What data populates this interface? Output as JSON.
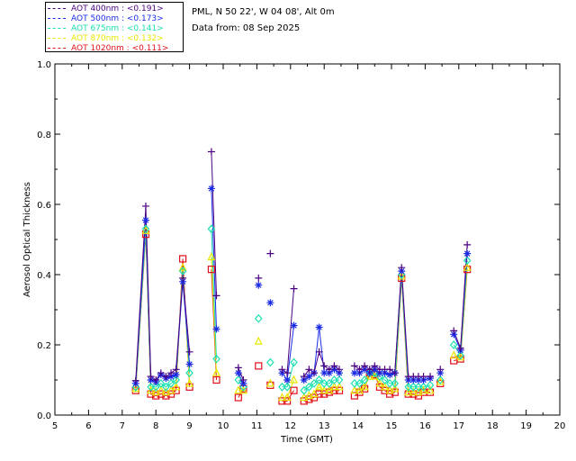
{
  "header": {
    "site_line": "PML, N 50 22', W 04 08', Alt 0m",
    "date_line": "Data from: 08 Sep 2025"
  },
  "colors": {
    "aot400": "#4b0082",
    "aot500": "#1a2be6",
    "aot675": "#19e0b0",
    "aot870": "#e8e800",
    "aot1020": "#e0101a"
  },
  "chart_data": {
    "type": "scatter",
    "xlabel": "Time (GMT)",
    "ylabel": "Aerosol Optical Thickness",
    "xlim": [
      5,
      20
    ],
    "ylim": [
      0,
      1.0
    ],
    "xticks": [
      "5",
      "6",
      "7",
      "8",
      "9",
      "10",
      "11",
      "12",
      "13",
      "14",
      "15",
      "16",
      "17",
      "18",
      "19",
      "20"
    ],
    "yticks": [
      "0.0",
      "0.2",
      "0.4",
      "0.6",
      "0.8",
      "1.0"
    ],
    "grid": false,
    "legend_position": "top-left outside",
    "series": [
      {
        "name": "AOT  400nm : <0.191>",
        "color_key": "aot400",
        "marker": "plus",
        "points": [
          [
            7.4,
            0.098
          ],
          [
            7.7,
            0.595
          ],
          [
            7.85,
            0.11
          ],
          [
            8.0,
            0.1
          ],
          [
            8.15,
            0.12
          ],
          [
            8.3,
            0.11
          ],
          [
            8.45,
            0.12
          ],
          [
            8.6,
            0.13
          ],
          [
            8.8,
            0.39
          ],
          [
            9.0,
            0.18
          ],
          [
            9.65,
            0.75
          ],
          [
            9.8,
            0.34
          ],
          [
            10.45,
            0.135
          ],
          [
            10.6,
            0.1
          ],
          [
            11.05,
            0.39
          ],
          [
            11.4,
            0.46
          ],
          [
            11.75,
            0.13
          ],
          [
            11.9,
            0.12
          ],
          [
            12.1,
            0.36
          ],
          [
            12.4,
            0.11
          ],
          [
            12.55,
            0.13
          ],
          [
            12.7,
            0.12
          ],
          [
            12.85,
            0.18
          ],
          [
            13.0,
            0.14
          ],
          [
            13.15,
            0.13
          ],
          [
            13.3,
            0.14
          ],
          [
            13.45,
            0.13
          ],
          [
            13.9,
            0.14
          ],
          [
            14.05,
            0.13
          ],
          [
            14.2,
            0.14
          ],
          [
            14.35,
            0.13
          ],
          [
            14.5,
            0.14
          ],
          [
            14.65,
            0.13
          ],
          [
            14.8,
            0.13
          ],
          [
            14.95,
            0.13
          ],
          [
            15.1,
            0.12
          ],
          [
            15.3,
            0.42
          ],
          [
            15.5,
            0.11
          ],
          [
            15.65,
            0.11
          ],
          [
            15.8,
            0.11
          ],
          [
            15.95,
            0.11
          ],
          [
            16.15,
            0.11
          ],
          [
            16.45,
            0.13
          ],
          [
            16.85,
            0.24
          ],
          [
            17.05,
            0.19
          ],
          [
            17.25,
            0.485
          ]
        ]
      },
      {
        "name": "AOT  500nm : <0.173>",
        "color_key": "aot500",
        "marker": "asterisk",
        "points": [
          [
            7.4,
            0.09
          ],
          [
            7.7,
            0.555
          ],
          [
            7.85,
            0.1
          ],
          [
            8.0,
            0.095
          ],
          [
            8.15,
            0.115
          ],
          [
            8.3,
            0.105
          ],
          [
            8.45,
            0.11
          ],
          [
            8.6,
            0.115
          ],
          [
            8.8,
            0.38
          ],
          [
            9.0,
            0.145
          ],
          [
            9.65,
            0.645
          ],
          [
            9.8,
            0.245
          ],
          [
            10.45,
            0.12
          ],
          [
            10.6,
            0.09
          ],
          [
            11.05,
            0.37
          ],
          [
            11.4,
            0.32
          ],
          [
            11.75,
            0.12
          ],
          [
            11.9,
            0.1
          ],
          [
            12.1,
            0.255
          ],
          [
            12.4,
            0.1
          ],
          [
            12.55,
            0.11
          ],
          [
            12.7,
            0.12
          ],
          [
            12.85,
            0.25
          ],
          [
            13.0,
            0.12
          ],
          [
            13.15,
            0.12
          ],
          [
            13.3,
            0.13
          ],
          [
            13.45,
            0.12
          ],
          [
            13.9,
            0.12
          ],
          [
            14.05,
            0.12
          ],
          [
            14.2,
            0.13
          ],
          [
            14.35,
            0.12
          ],
          [
            14.5,
            0.13
          ],
          [
            14.65,
            0.12
          ],
          [
            14.8,
            0.12
          ],
          [
            14.95,
            0.115
          ],
          [
            15.1,
            0.12
          ],
          [
            15.3,
            0.41
          ],
          [
            15.5,
            0.1
          ],
          [
            15.65,
            0.1
          ],
          [
            15.8,
            0.1
          ],
          [
            15.95,
            0.1
          ],
          [
            16.15,
            0.105
          ],
          [
            16.45,
            0.12
          ],
          [
            16.85,
            0.23
          ],
          [
            17.05,
            0.185
          ],
          [
            17.25,
            0.46
          ]
        ]
      },
      {
        "name": "AOT  675nm : <0.141>",
        "color_key": "aot675",
        "marker": "diamond",
        "points": [
          [
            7.4,
            0.08
          ],
          [
            7.7,
            0.53
          ],
          [
            7.85,
            0.08
          ],
          [
            8.0,
            0.08
          ],
          [
            8.15,
            0.09
          ],
          [
            8.3,
            0.08
          ],
          [
            8.45,
            0.09
          ],
          [
            8.6,
            0.1
          ],
          [
            8.8,
            0.41
          ],
          [
            9.0,
            0.12
          ],
          [
            9.65,
            0.53
          ],
          [
            9.8,
            0.16
          ],
          [
            10.45,
            0.1
          ],
          [
            10.6,
            0.08
          ],
          [
            11.05,
            0.275
          ],
          [
            11.4,
            0.15
          ],
          [
            11.75,
            0.08
          ],
          [
            11.9,
            0.08
          ],
          [
            12.1,
            0.15
          ],
          [
            12.4,
            0.07
          ],
          [
            12.55,
            0.08
          ],
          [
            12.7,
            0.09
          ],
          [
            12.85,
            0.1
          ],
          [
            13.0,
            0.09
          ],
          [
            13.15,
            0.09
          ],
          [
            13.3,
            0.1
          ],
          [
            13.45,
            0.1
          ],
          [
            13.9,
            0.09
          ],
          [
            14.05,
            0.09
          ],
          [
            14.2,
            0.1
          ],
          [
            14.35,
            0.12
          ],
          [
            14.5,
            0.12
          ],
          [
            14.65,
            0.11
          ],
          [
            14.8,
            0.1
          ],
          [
            14.95,
            0.09
          ],
          [
            15.1,
            0.09
          ],
          [
            15.3,
            0.4
          ],
          [
            15.5,
            0.08
          ],
          [
            15.65,
            0.08
          ],
          [
            15.8,
            0.08
          ],
          [
            15.95,
            0.08
          ],
          [
            16.15,
            0.085
          ],
          [
            16.45,
            0.1
          ],
          [
            16.85,
            0.2
          ],
          [
            17.05,
            0.17
          ],
          [
            17.25,
            0.44
          ]
        ]
      },
      {
        "name": "AOT  870nm : <0.132>",
        "color_key": "aot870",
        "marker": "triangle",
        "points": [
          [
            7.4,
            0.075
          ],
          [
            7.7,
            0.525
          ],
          [
            7.85,
            0.07
          ],
          [
            8.0,
            0.065
          ],
          [
            8.15,
            0.07
          ],
          [
            8.3,
            0.065
          ],
          [
            8.45,
            0.07
          ],
          [
            8.6,
            0.08
          ],
          [
            8.8,
            0.42
          ],
          [
            9.0,
            0.09
          ],
          [
            9.65,
            0.45
          ],
          [
            9.8,
            0.12
          ],
          [
            10.45,
            0.07
          ],
          [
            10.6,
            0.07
          ],
          [
            11.05,
            0.21
          ],
          [
            11.4,
            0.09
          ],
          [
            11.75,
            0.05
          ],
          [
            11.9,
            0.05
          ],
          [
            12.1,
            0.1
          ],
          [
            12.4,
            0.05
          ],
          [
            12.55,
            0.055
          ],
          [
            12.7,
            0.06
          ],
          [
            12.85,
            0.08
          ],
          [
            13.0,
            0.07
          ],
          [
            13.15,
            0.07
          ],
          [
            13.3,
            0.08
          ],
          [
            13.45,
            0.08
          ],
          [
            13.9,
            0.07
          ],
          [
            14.05,
            0.07
          ],
          [
            14.2,
            0.08
          ],
          [
            14.35,
            0.11
          ],
          [
            14.5,
            0.11
          ],
          [
            14.65,
            0.09
          ],
          [
            14.8,
            0.08
          ],
          [
            14.95,
            0.07
          ],
          [
            15.1,
            0.075
          ],
          [
            15.3,
            0.395
          ],
          [
            15.5,
            0.065
          ],
          [
            15.65,
            0.065
          ],
          [
            15.8,
            0.065
          ],
          [
            15.95,
            0.07
          ],
          [
            16.15,
            0.07
          ],
          [
            16.45,
            0.095
          ],
          [
            16.85,
            0.17
          ],
          [
            17.05,
            0.165
          ],
          [
            17.25,
            0.42
          ]
        ]
      },
      {
        "name": "AOT 1020nm : <0.111>",
        "color_key": "aot1020",
        "marker": "square",
        "points": [
          [
            7.4,
            0.07
          ],
          [
            7.7,
            0.515
          ],
          [
            7.85,
            0.06
          ],
          [
            8.0,
            0.055
          ],
          [
            8.15,
            0.06
          ],
          [
            8.3,
            0.055
          ],
          [
            8.45,
            0.06
          ],
          [
            8.6,
            0.07
          ],
          [
            8.8,
            0.445
          ],
          [
            9.0,
            0.08
          ],
          [
            9.65,
            0.415
          ],
          [
            9.8,
            0.1
          ],
          [
            10.45,
            0.05
          ],
          [
            10.6,
            0.075
          ],
          [
            11.05,
            0.14
          ],
          [
            11.4,
            0.085
          ],
          [
            11.75,
            0.04
          ],
          [
            11.9,
            0.04
          ],
          [
            12.1,
            0.07
          ],
          [
            12.4,
            0.04
          ],
          [
            12.55,
            0.045
          ],
          [
            12.7,
            0.05
          ],
          [
            12.85,
            0.06
          ],
          [
            13.0,
            0.06
          ],
          [
            13.15,
            0.065
          ],
          [
            13.3,
            0.07
          ],
          [
            13.45,
            0.07
          ],
          [
            13.9,
            0.055
          ],
          [
            14.05,
            0.065
          ],
          [
            14.2,
            0.075
          ],
          [
            14.35,
            0.12
          ],
          [
            14.5,
            0.115
          ],
          [
            14.65,
            0.08
          ],
          [
            14.8,
            0.07
          ],
          [
            14.95,
            0.06
          ],
          [
            15.1,
            0.065
          ],
          [
            15.3,
            0.39
          ],
          [
            15.5,
            0.06
          ],
          [
            15.65,
            0.06
          ],
          [
            15.8,
            0.055
          ],
          [
            15.95,
            0.065
          ],
          [
            16.15,
            0.065
          ],
          [
            16.45,
            0.09
          ],
          [
            16.85,
            0.155
          ],
          [
            17.05,
            0.16
          ],
          [
            17.25,
            0.415
          ]
        ]
      }
    ]
  }
}
